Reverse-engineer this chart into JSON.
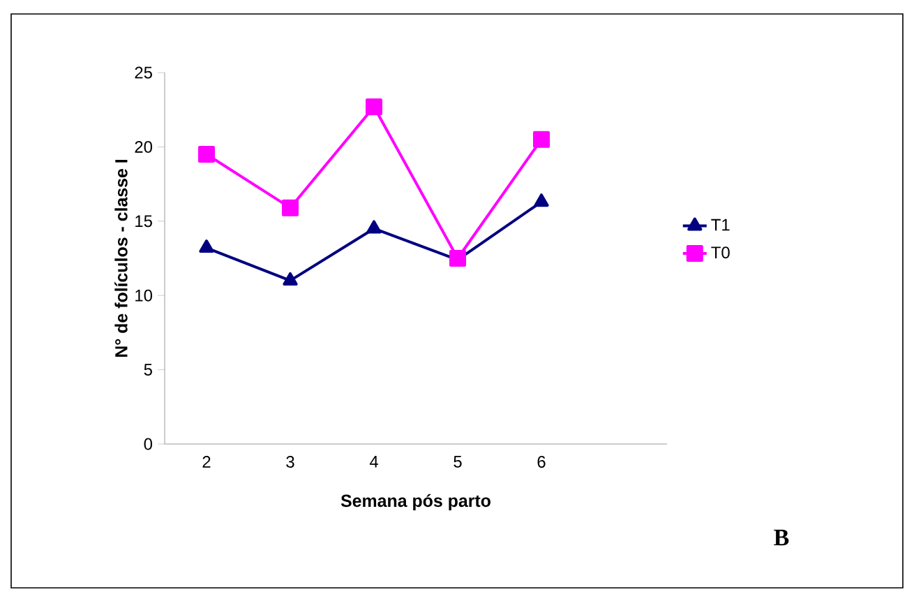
{
  "chart_data": {
    "type": "line",
    "xlabel": "Semana pós parto",
    "ylabel": "N° de folículos - classe I",
    "categories": [
      "2",
      "3",
      "4",
      "5",
      "6",
      null
    ],
    "series": [
      {
        "name": "T1",
        "color": "#000080",
        "marker": "triangle",
        "values": [
          13.2,
          11.0,
          14.5,
          12.4,
          16.3,
          null
        ]
      },
      {
        "name": "T0",
        "color": "#ff00ff",
        "marker": "square",
        "values": [
          19.5,
          15.9,
          22.7,
          12.5,
          20.5,
          null
        ]
      }
    ],
    "ylim": [
      0,
      25
    ],
    "yticks": [
      0,
      5,
      10,
      15,
      20,
      25
    ],
    "legend": "right",
    "grid": false,
    "annotations": [
      "B"
    ]
  }
}
